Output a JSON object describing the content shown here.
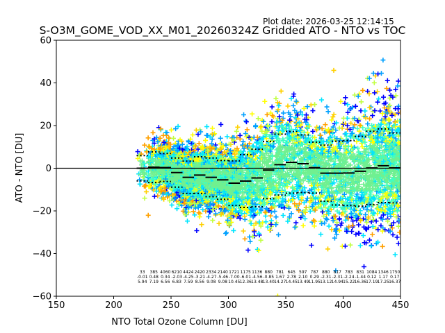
{
  "header": {
    "plot_date": "Plot date: 2026-03-25 12:14:15"
  },
  "chart_data": {
    "type": "scatter",
    "title": "S-O3M_GOME_VOD_XX_M01_20260324Z Gridded ATO - NTO vs TOC",
    "xlabel": "NTO Total Ozone Column [DU]",
    "ylabel": "ATO - NTO [DU]",
    "xlim": [
      150,
      450
    ],
    "ylim": [
      -60,
      60
    ],
    "xticks": [
      150,
      200,
      250,
      300,
      350,
      400,
      450
    ],
    "yticks": [
      -60,
      -40,
      -20,
      0,
      20,
      40,
      60
    ],
    "reference_line_y": 0,
    "marker": "+",
    "colormap": [
      "#0000ff",
      "#00a0ff",
      "#00e5ff",
      "#40ffc0",
      "#70f090",
      "#c0ff40",
      "#ffff00",
      "#ffd000",
      "#ffa000"
    ],
    "bin_width": 10,
    "bins": [
      220,
      230,
      240,
      250,
      260,
      270,
      280,
      290,
      300,
      310,
      320,
      330,
      340,
      350,
      360,
      370,
      380,
      390,
      400,
      410,
      420,
      430,
      440
    ],
    "counts": [
      "33",
      "385",
      "4060",
      "6210",
      "4424",
      "2420",
      "2334",
      "2140",
      "1721",
      "1175",
      "1136",
      "880",
      "781",
      "645",
      "597",
      "787",
      "880",
      "817",
      "783",
      "831",
      "1084",
      "1346",
      "1750"
    ],
    "medians": [
      "-0.01",
      "0.48",
      "0.34",
      "-2.03",
      "-4.25",
      "-3.21",
      "-4.27",
      "-5.46",
      "-7.00",
      "-6.01",
      "-4.56",
      "-0.85",
      "1.67",
      "2.78",
      "2.10",
      "0.29",
      "-2.31",
      "-2.31",
      "-2.24",
      "-1.44",
      "0.12",
      "1.17",
      "0.17"
    ],
    "stds": [
      "5.94",
      "7.19",
      "6.56",
      "6.83",
      "7.59",
      "8.56",
      "9.08",
      "9.08",
      "10.45",
      "12.36",
      "13.48",
      "13.40",
      "14.27",
      "14.45",
      "13.49",
      "11.95",
      "13.12",
      "14.94",
      "15.22",
      "16.36",
      "17.19",
      "17.25",
      "16.37"
    ]
  }
}
